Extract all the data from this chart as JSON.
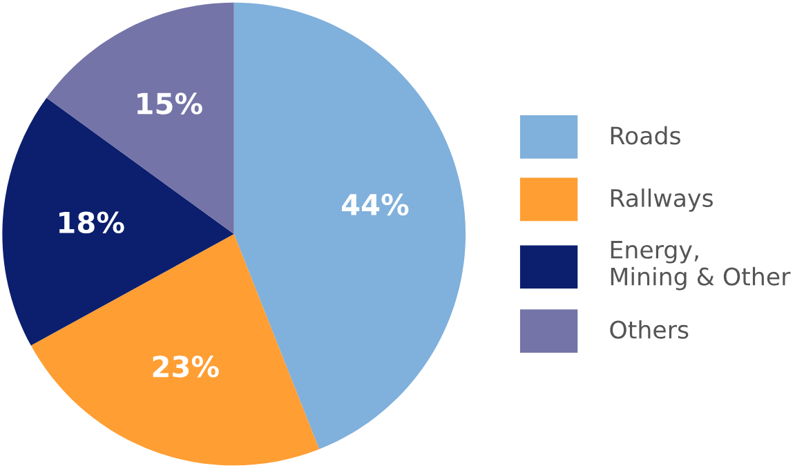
{
  "chart_data": {
    "type": "pie",
    "categories": [
      "Roads",
      "Rallways",
      "Energy,\nMining & Other",
      "Others"
    ],
    "values": [
      44,
      23,
      18,
      15
    ],
    "colors": [
      "#80b0dc",
      "#ff9e33",
      "#0c1f6e",
      "#7474a8"
    ],
    "value_labels": [
      "44%",
      "23%",
      "18%",
      "15%"
    ],
    "legend": "right"
  }
}
